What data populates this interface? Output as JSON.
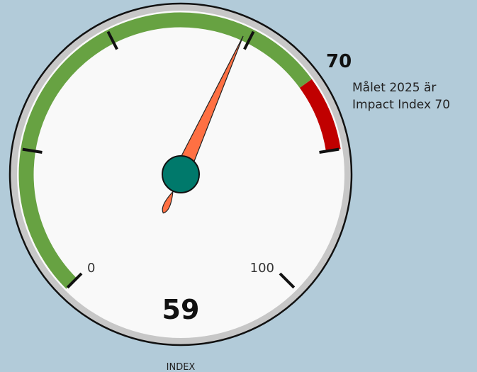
{
  "chart_data": {
    "type": "gauge",
    "value": 59,
    "min": 0,
    "max": 100,
    "tick_labels": [
      "0",
      "100"
    ],
    "bands": [
      {
        "from": 0,
        "to": 70,
        "color": "#67a242"
      },
      {
        "from": 70,
        "to": 80,
        "color": "#c00000"
      }
    ],
    "target": {
      "value": "70",
      "caption_line1": "Målet 2025 är",
      "caption_line2": "Impact Index 70"
    },
    "value_label": "59",
    "unit_label": "INDEX"
  },
  "colors": {
    "background": "#b2cbd9",
    "needle": "#ff7043",
    "hub": "#00796b",
    "face": "#f9f9f9",
    "rim": "#c7c7c7"
  }
}
